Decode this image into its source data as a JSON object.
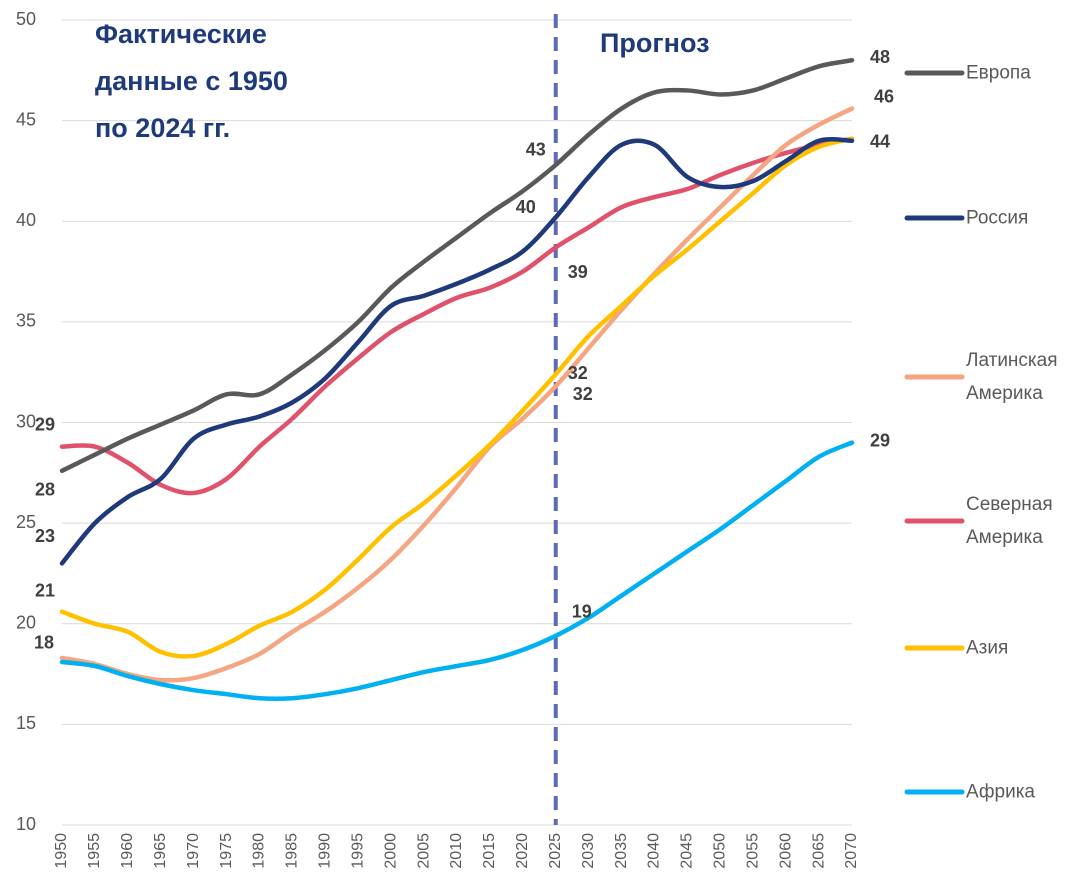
{
  "chart_data": {
    "type": "line",
    "annotations": [
      {
        "lines": [
          "Фактические",
          "данные с 1950",
          "по 2024 гг."
        ]
      },
      {
        "lines": [
          "Прогноз"
        ]
      }
    ],
    "forecast_start": 2025,
    "x": [
      1950,
      1955,
      1960,
      1965,
      1970,
      1975,
      1980,
      1985,
      1990,
      1995,
      2000,
      2005,
      2010,
      2015,
      2020,
      2025,
      2030,
      2035,
      2040,
      2045,
      2050,
      2055,
      2060,
      2065,
      2070
    ],
    "xlim": [
      1950,
      2070
    ],
    "xticks": [
      1950,
      1955,
      1960,
      1965,
      1970,
      1975,
      1980,
      1985,
      1990,
      1995,
      2000,
      2005,
      2010,
      2015,
      2020,
      2025,
      2030,
      2035,
      2040,
      2045,
      2050,
      2055,
      2060,
      2065,
      2070
    ],
    "ylim": [
      10,
      50
    ],
    "yticks": [
      10,
      15,
      20,
      25,
      30,
      35,
      40,
      45,
      50
    ],
    "grid": true,
    "series": [
      {
        "name": "Европа",
        "color": "#595959",
        "values": [
          27.6,
          28.4,
          29.2,
          29.9,
          30.6,
          31.4,
          31.4,
          32.4,
          33.6,
          35.0,
          36.7,
          38.0,
          39.2,
          40.4,
          41.5,
          42.8,
          44.3,
          45.6,
          46.4,
          46.5,
          46.3,
          46.5,
          47.1,
          47.7,
          48.0
        ],
        "value_labels": [
          "28",
          null,
          null,
          null,
          null,
          null,
          null,
          null,
          null,
          null,
          null,
          null,
          null,
          null,
          null,
          "43",
          null,
          null,
          null,
          null,
          null,
          null,
          null,
          null,
          "48"
        ]
      },
      {
        "name": "Россия",
        "color": "#1f3a7a",
        "values": [
          23.0,
          25.0,
          26.3,
          27.2,
          29.2,
          29.9,
          30.3,
          31.0,
          32.2,
          34.0,
          35.8,
          36.3,
          36.9,
          37.6,
          38.5,
          40.2,
          42.2,
          43.8,
          43.8,
          42.2,
          41.7,
          42.0,
          43.0,
          44.0,
          44.0
        ],
        "value_labels": [
          "23",
          null,
          null,
          null,
          null,
          null,
          null,
          null,
          null,
          null,
          null,
          null,
          null,
          null,
          null,
          "40",
          null,
          null,
          null,
          null,
          null,
          null,
          null,
          null,
          "44"
        ]
      },
      {
        "name": "Латинская Америка",
        "color": "#f4a582",
        "values": [
          18.3,
          18.0,
          17.5,
          17.2,
          17.3,
          17.8,
          18.5,
          19.6,
          20.6,
          21.8,
          23.2,
          24.9,
          26.8,
          28.8,
          30.2,
          31.8,
          33.7,
          35.6,
          37.4,
          39.1,
          40.7,
          42.3,
          43.8,
          44.8,
          45.6
        ],
        "value_labels": [
          "18",
          null,
          null,
          null,
          null,
          null,
          null,
          null,
          null,
          null,
          null,
          null,
          null,
          null,
          null,
          "32",
          null,
          null,
          null,
          null,
          null,
          null,
          null,
          null,
          "46"
        ]
      },
      {
        "name": "Северная Америка",
        "color": "#e0526b",
        "values": [
          28.8,
          28.8,
          28.0,
          26.9,
          26.5,
          27.2,
          28.8,
          30.2,
          31.8,
          33.2,
          34.5,
          35.4,
          36.2,
          36.7,
          37.5,
          38.7,
          39.7,
          40.7,
          41.2,
          41.6,
          42.3,
          42.9,
          43.4,
          43.8,
          44.1
        ],
        "value_labels": [
          "29",
          null,
          null,
          null,
          null,
          null,
          null,
          null,
          null,
          null,
          null,
          null,
          null,
          null,
          null,
          "39",
          null,
          null,
          null,
          null,
          null,
          null,
          null,
          null,
          null
        ]
      },
      {
        "name": "Азия",
        "color": "#ffc000",
        "values": [
          20.6,
          20.0,
          19.6,
          18.6,
          18.4,
          19.0,
          19.9,
          20.6,
          21.7,
          23.2,
          24.8,
          26.0,
          27.4,
          28.9,
          30.6,
          32.4,
          34.3,
          35.8,
          37.3,
          38.6,
          40.0,
          41.4,
          42.8,
          43.7,
          44.1
        ],
        "value_labels": [
          "21",
          null,
          null,
          null,
          null,
          null,
          null,
          null,
          null,
          null,
          null,
          null,
          null,
          null,
          null,
          "32",
          null,
          null,
          null,
          null,
          null,
          null,
          null,
          null,
          null
        ]
      },
      {
        "name": "Африка",
        "color": "#00b0f0",
        "values": [
          18.1,
          17.9,
          17.4,
          17.0,
          16.7,
          16.5,
          16.3,
          16.3,
          16.5,
          16.8,
          17.2,
          17.6,
          17.9,
          18.2,
          18.7,
          19.4,
          20.3,
          21.4,
          22.5,
          23.6,
          24.7,
          25.9,
          27.1,
          28.3,
          29.0
        ],
        "value_labels": [
          null,
          null,
          null,
          null,
          null,
          null,
          null,
          null,
          null,
          null,
          null,
          null,
          null,
          null,
          null,
          "19",
          null,
          null,
          null,
          null,
          null,
          null,
          null,
          null,
          "29"
        ]
      }
    ]
  }
}
